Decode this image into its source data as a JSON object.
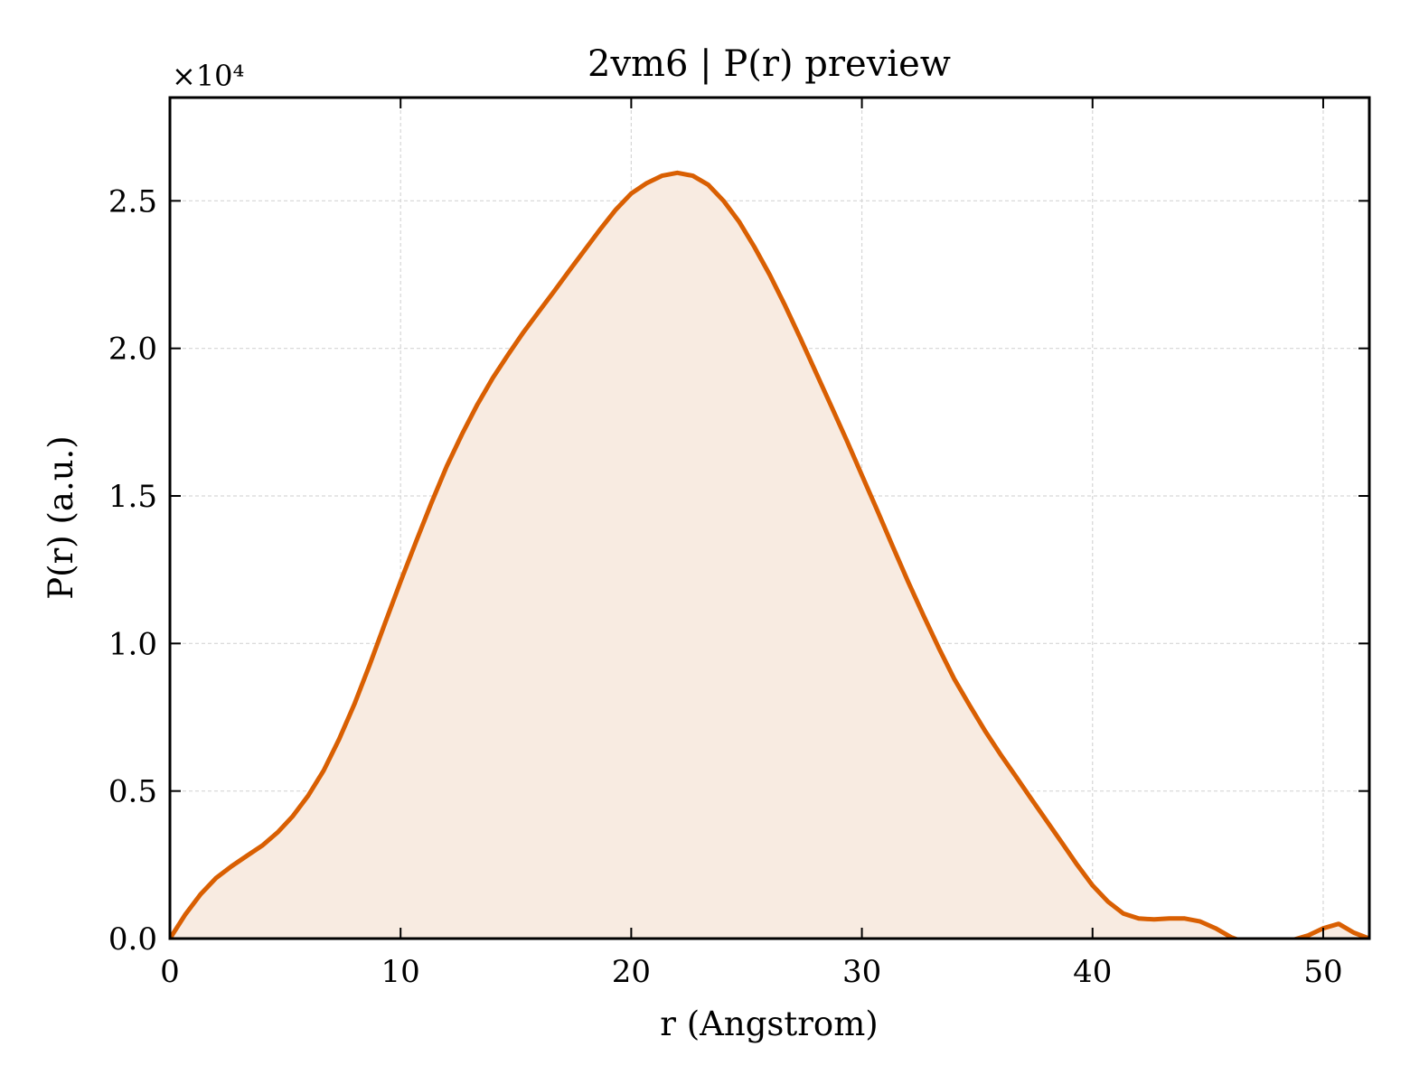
{
  "chart_data": {
    "type": "area",
    "title": "2vm6 | P(r) preview",
    "xlabel": "r (Angstrom)",
    "ylabel": "P(r) (a.u.)",
    "y_offset_label": "×10⁴",
    "xlim": [
      0,
      52
    ],
    "ylim": [
      0,
      28500
    ],
    "xticks": [
      0,
      10,
      20,
      30,
      40,
      50
    ],
    "xtick_labels": [
      "0",
      "10",
      "20",
      "30",
      "40",
      "50"
    ],
    "yticks": [
      0,
      5000,
      10000,
      15000,
      20000,
      25000
    ],
    "ytick_labels": [
      "0.0",
      "0.5",
      "1.0",
      "1.5",
      "2.0",
      "2.5"
    ],
    "grid": true,
    "line_color": "#d95f02",
    "fill_color": "#f8ebe1",
    "series": [
      {
        "x": [
          0,
          0.67,
          1.33,
          2.0,
          2.67,
          3.33,
          4.0,
          4.67,
          5.33,
          6.0,
          6.67,
          7.33,
          8.0,
          8.67,
          9.33,
          10.0,
          10.67,
          11.33,
          12.0,
          12.67,
          13.33,
          14.0,
          14.67,
          15.33,
          16.0,
          16.67,
          17.33,
          18.0,
          18.67,
          19.33,
          20.0,
          20.67,
          21.33,
          22.0,
          22.67,
          23.33,
          24.0,
          24.67,
          25.33,
          26.0,
          26.67,
          27.33,
          28.0,
          28.67,
          29.33,
          30.0,
          30.67,
          31.33,
          32.0,
          32.67,
          33.33,
          34.0,
          34.67,
          35.33,
          36.0,
          36.67,
          37.33,
          38.0,
          38.67,
          39.33,
          40.0,
          40.67,
          41.33,
          42.0,
          42.67,
          43.33,
          44.0,
          44.67,
          45.33,
          46.0,
          46.67,
          47.33,
          48.0,
          48.67,
          49.33,
          50.0,
          50.67,
          51.33,
          52.0
        ],
        "y": [
          0,
          820,
          1500,
          2050,
          2450,
          2800,
          3150,
          3600,
          4150,
          4850,
          5700,
          6750,
          7950,
          9300,
          10700,
          12100,
          13450,
          14750,
          16000,
          17100,
          18100,
          19000,
          19800,
          20550,
          21250,
          21950,
          22650,
          23350,
          24050,
          24700,
          25250,
          25600,
          25850,
          25950,
          25850,
          25550,
          25000,
          24300,
          23450,
          22500,
          21450,
          20350,
          19200,
          18050,
          16900,
          15700,
          14500,
          13300,
          12100,
          10950,
          9850,
          8800,
          7900,
          7050,
          6250,
          5500,
          4750,
          4000,
          3250,
          2500,
          1800,
          1250,
          850,
          680,
          650,
          680,
          680,
          580,
          350,
          50,
          -150,
          -250,
          -200,
          -50,
          100,
          350,
          500,
          200,
          0
        ]
      }
    ]
  }
}
